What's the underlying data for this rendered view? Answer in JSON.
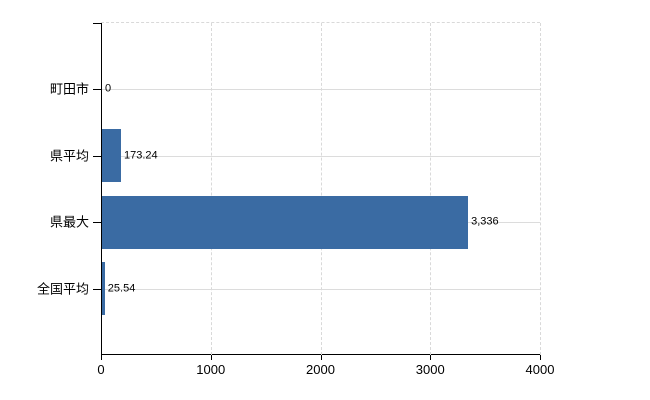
{
  "chart_data": {
    "type": "bar",
    "orientation": "horizontal",
    "title": "",
    "xlabel": "",
    "ylabel": "",
    "categories": [
      "町田市",
      "県平均",
      "県最大",
      "全国平均"
    ],
    "values": [
      0,
      173.24,
      3336,
      25.54
    ],
    "value_labels": [
      "0",
      "173.24",
      "3,336",
      "25.54"
    ],
    "xlim": [
      0,
      4000
    ],
    "x_ticks": [
      0,
      1000,
      2000,
      3000,
      4000
    ],
    "x_tick_labels": [
      "0",
      "1000",
      "2000",
      "3000",
      "4000"
    ],
    "grid": true,
    "legend": "none",
    "bar_color": "#3a6ba3"
  },
  "colors": {
    "bar": "#3a6ba3",
    "gridline": "#d9d9d9",
    "axis": "#000000",
    "text": "#000000",
    "background": "#ffffff"
  }
}
